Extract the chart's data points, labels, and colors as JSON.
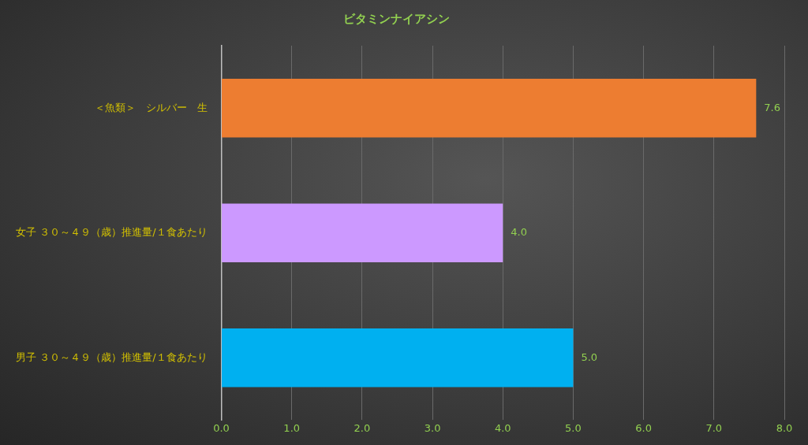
{
  "chart_data": {
    "type": "bar",
    "orientation": "horizontal",
    "title": "ビタミンナイアシン",
    "categories": [
      "＜魚類＞　シルバー　生",
      "女子 ３０～４９（歳）推進量/１食あたり",
      "男子 ３０～４９（歳）推進量/１食あたり"
    ],
    "values": [
      7.6,
      4.0,
      5.0
    ],
    "colors": [
      "#ed7d31",
      "#cc99ff",
      "#00b0f0"
    ],
    "xlim": [
      0,
      8
    ],
    "xticks": [
      {
        "value": 0,
        "label": "0.0"
      },
      {
        "value": 1,
        "label": "1.0"
      },
      {
        "value": 2,
        "label": "2.0"
      },
      {
        "value": 3,
        "label": "3.0"
      },
      {
        "value": 4,
        "label": "4.0"
      },
      {
        "value": 5,
        "label": "5.0"
      },
      {
        "value": 6,
        "label": "6.0"
      },
      {
        "value": 7,
        "label": "7.0"
      },
      {
        "value": 8,
        "label": "8.0"
      }
    ],
    "value_labels": [
      "7.6",
      "4.0",
      "5.0"
    ],
    "grid": "x",
    "legend": false
  }
}
